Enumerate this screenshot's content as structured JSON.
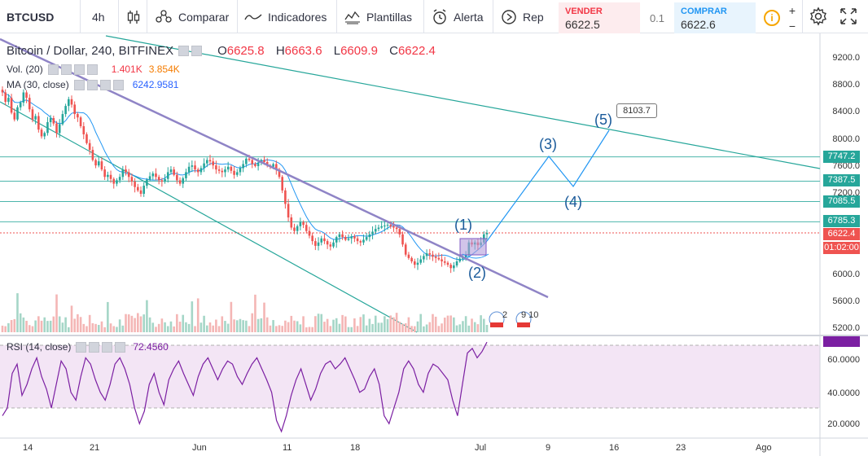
{
  "toolbar": {
    "symbol": "BTCUSD",
    "interval": "4h",
    "compare_label": "Comparar",
    "indicators_label": "Indicadores",
    "templates_label": "Plantillas",
    "alert_label": "Alerta",
    "replay_label": "Rep",
    "sell_label": "VENDER",
    "sell_price": "6622.5",
    "spread": "0.1",
    "buy_label": "COMPRAR",
    "buy_price": "6622.6",
    "info_glyph": "i",
    "plus_glyph": "+",
    "minus_glyph": "−",
    "icons": [
      "chart-type-icon",
      "compare-icon",
      "indicators-icon",
      "templates-icon",
      "alert-icon",
      "replay-icon",
      "settings-icon",
      "fullscreen-icon"
    ]
  },
  "legend": {
    "title": "Bitcoin / Dollar, 240, BITFINEX",
    "o_label": "O",
    "o_value": "6625.8",
    "h_label": "H",
    "h_value": "6663.6",
    "l_label": "L",
    "l_value": "6609.9",
    "c_label": "C",
    "c_value": "6622.4",
    "vol_label": "Vol. (20)",
    "vol_value1": "1.401K",
    "vol_value2": "3.854K",
    "ma_label": "MA (30, close)",
    "ma_value": "6242.9581",
    "rsi_label": "RSI (14, close)",
    "rsi_value": "72.4560"
  },
  "annotations": {
    "w1": "(1)",
    "w2": "(2)",
    "w3": "(3)",
    "w4": "(4)",
    "w5": "(5)",
    "target": "8103.7",
    "badges": [
      "2",
      "9 10"
    ]
  },
  "price_axis": {
    "ticks": [
      "9200.0",
      "8800.0",
      "8400.0",
      "8000.0",
      "7600.0",
      "7200.0",
      "6800.0",
      "6400.0",
      "6000.0",
      "5600.0",
      "5200.0"
    ],
    "levels": [
      "7747.2",
      "7387.5",
      "7085.5",
      "6785.3"
    ],
    "current": "6622.4",
    "countdown": "01:02:00"
  },
  "rsi_axis": {
    "ticks": [
      "60.0000",
      "40.0000",
      "20.0000"
    ]
  },
  "time_axis": {
    "ticks": [
      "14",
      "21",
      "Jun",
      "11",
      "18",
      "Jul",
      "9",
      "16",
      "23",
      "Ago"
    ]
  },
  "colors": {
    "up": "#26a69a",
    "down": "#ef5350",
    "resistance": "#8f84c6",
    "level": "#4db6ac",
    "ma": "#2196f3",
    "rsi": "#7b1fa2",
    "rsi_band": "#f3e5f5"
  },
  "chart_data": {
    "type": "candlestick",
    "symbol": "Bitcoin / Dollar",
    "timeframe": "240",
    "exchange": "BITFINEX",
    "ylim": [
      5200,
      9300
    ],
    "y_scale": "log",
    "price_path": [
      8700,
      8560,
      8620,
      8400,
      8300,
      8480,
      8550,
      8700,
      8620,
      8450,
      8300,
      8350,
      8150,
      8050,
      8100,
      8260,
      8320,
      8240,
      8100,
      8230,
      8380,
      8500,
      8600,
      8520,
      8380,
      8330,
      8200,
      8080,
      7950,
      7850,
      7700,
      7620,
      7680,
      7560,
      7450,
      7480,
      7420,
      7350,
      7400,
      7450,
      7560,
      7520,
      7450,
      7380,
      7300,
      7250,
      7200,
      7320,
      7410,
      7460,
      7500,
      7450,
      7400,
      7380,
      7420,
      7520,
      7560,
      7480,
      7400,
      7350,
      7430,
      7520,
      7600,
      7620,
      7560,
      7520,
      7580,
      7650,
      7700,
      7680,
      7620,
      7560,
      7540,
      7520,
      7560,
      7600,
      7540,
      7480,
      7520,
      7580,
      7640,
      7720,
      7700,
      7640,
      7610,
      7660,
      7700,
      7670,
      7620,
      7600,
      7640,
      7560,
      7450,
      7250,
      7050,
      6850,
      6700,
      6650,
      6720,
      6780,
      6740,
      6650,
      6580,
      6500,
      6430,
      6480,
      6540,
      6500,
      6450,
      6420,
      6480,
      6560,
      6600,
      6560,
      6520,
      6540,
      6570,
      6540,
      6500,
      6480,
      6520,
      6560,
      6600,
      6640,
      6680,
      6700,
      6720,
      6730,
      6740,
      6720,
      6700,
      6680,
      6600,
      6450,
      6300,
      6250,
      6200,
      6150,
      6180,
      6230,
      6280,
      6320,
      6300,
      6270,
      6250,
      6230,
      6200,
      6180,
      6150,
      6100,
      6140,
      6200,
      6240,
      6260,
      6300,
      6480,
      6450,
      6480,
      6440,
      6480,
      6600,
      6622
    ],
    "trendlines": [
      {
        "name": "resistance",
        "from": [
          "May 9",
          9000
        ],
        "to": [
          "Jul 5",
          6050
        ]
      }
    ],
    "horizontal_levels": [
      7747.2,
      7387.5,
      7085.5,
      6785.3
    ],
    "current_price": 6622.4,
    "elliott_projection": [
      {
        "label": "(1)",
        "price": 6550
      },
      {
        "label": "(2)",
        "price": 6420
      },
      {
        "label": "(3)",
        "price": 7750
      },
      {
        "label": "(4)",
        "price": 7260
      },
      {
        "label": "(5)",
        "price": 8103.7
      }
    ],
    "ma_period": 30,
    "rsi": {
      "period": 14,
      "current": 72.456,
      "levels": [
        70,
        30
      ],
      "ylim": [
        10,
        75
      ],
      "values": [
        25,
        30,
        52,
        58,
        38,
        45,
        55,
        62,
        50,
        42,
        30,
        45,
        60,
        55,
        40,
        35,
        50,
        62,
        58,
        48,
        40,
        35,
        45,
        58,
        62,
        55,
        45,
        30,
        20,
        28,
        45,
        52,
        40,
        32,
        48,
        55,
        60,
        52,
        45,
        38,
        50,
        58,
        62,
        55,
        48,
        55,
        60,
        58,
        50,
        45,
        52,
        58,
        62,
        55,
        48,
        40,
        22,
        15,
        25,
        38,
        48,
        55,
        45,
        35,
        42,
        52,
        58,
        60,
        55,
        58,
        62,
        55,
        48,
        40,
        42,
        50,
        55,
        45,
        25,
        20,
        30,
        40,
        55,
        60,
        55,
        45,
        40,
        52,
        58,
        56,
        52,
        48,
        35,
        25,
        45,
        65,
        68,
        62,
        66,
        72
      ]
    }
  }
}
